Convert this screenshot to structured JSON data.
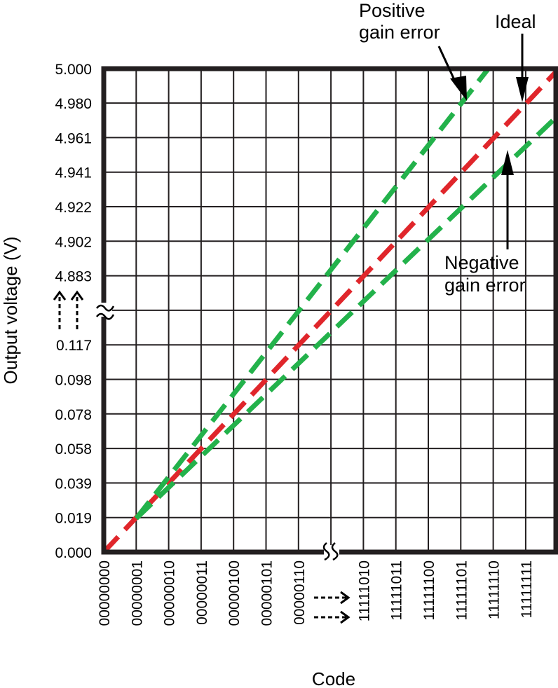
{
  "chart_data": {
    "type": "line",
    "title": "",
    "xlabel": "Code",
    "ylabel": "Output voltage (V)",
    "x_ticks": [
      "00000000",
      "00000001",
      "00000010",
      "00000011",
      "00000100",
      "00000101",
      "00000110",
      "11111010",
      "11111011",
      "11111100",
      "11111101",
      "11111110",
      "11111111"
    ],
    "x_break_after": "00000110",
    "y_ticks_low": [
      "0.000",
      "0.019",
      "0.039",
      "0.058",
      "0.078",
      "0.098",
      "0.117"
    ],
    "y_ticks_high": [
      "4.883",
      "4.902",
      "4.922",
      "4.941",
      "4.961",
      "4.980",
      "5.000"
    ],
    "y_break_between": [
      "0.117",
      "4.883"
    ],
    "grid": true,
    "series": [
      {
        "name": "Ideal",
        "color": "#e0262b",
        "style": "dashed",
        "points": [
          {
            "x": "00000000",
            "y": 0.0
          },
          {
            "x": "11111111",
            "y": 4.98
          }
        ]
      },
      {
        "name": "Positive gain error",
        "color": "#23b24b",
        "style": "dashed",
        "points": [
          {
            "x": "00000001",
            "y": 0.019
          },
          {
            "x": "11111101",
            "y": 4.98
          }
        ]
      },
      {
        "name": "Negative gain error",
        "color": "#23b24b",
        "style": "dashed",
        "points": [
          {
            "x": "00000001",
            "y": 0.019
          },
          {
            "x": "11111111",
            "y": 4.956
          }
        ]
      }
    ],
    "annotations": {
      "positive": [
        "Positive",
        "gain error"
      ],
      "ideal": "Ideal",
      "negative": [
        "Negative",
        "gain error"
      ]
    }
  }
}
